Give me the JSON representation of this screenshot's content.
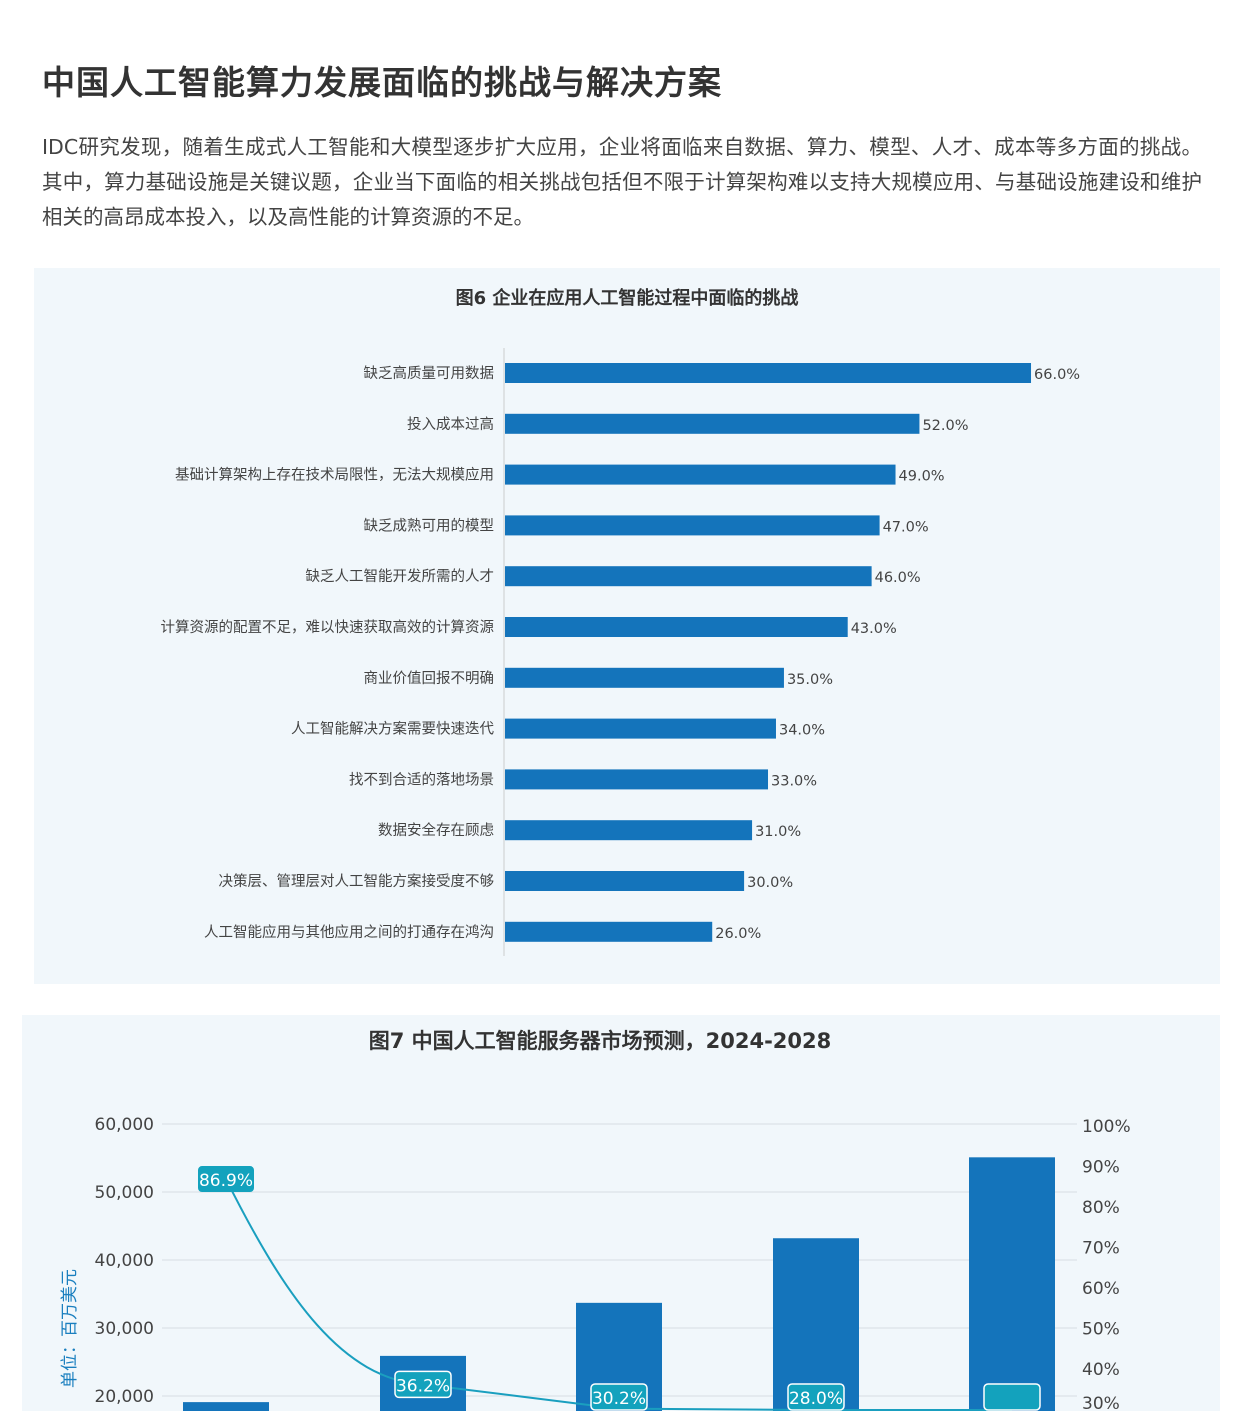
{
  "header": {
    "title": "中国人工智能算力发展面临的挑战与解决方案",
    "paragraph": "IDC研究发现，随着生成式人工智能和大模型逐步扩大应用，企业将面临来自数据、算力、模型、人才、成本等多方面的挑战。其中，算力基础设施是关键议题，企业当下面临的相关挑战包括但不限于计算架构难以支持大规模应用、与基础设施建设和维护相关的高昂成本投入，以及高性能的计算资源的不足。"
  },
  "colors": {
    "bar": "#1474bb",
    "line": "#1a9fbf",
    "label_bg": "#13a2bd",
    "card_bg": "#f1f7fb"
  },
  "chart_data": [
    {
      "type": "bar",
      "orientation": "horizontal",
      "title": "图6 企业在应用人工智能过程中面临的挑战",
      "categories": [
        "缺乏高质量可用数据",
        "投入成本过高",
        "基础计算架构上存在技术局限性，无法大规模应用",
        "缺乏成熟可用的模型",
        "缺乏人工智能开发所需的人才",
        "计算资源的配置不足，难以快速获取高效的计算资源",
        "商业价值回报不明确",
        "人工智能解决方案需要快速迭代",
        "找不到合适的落地场景",
        "数据安全存在顾虑",
        "决策层、管理层对人工智能方案接受度不够",
        "人工智能应用与其他应用之间的打通存在鸿沟"
      ],
      "values": [
        66.0,
        52.0,
        49.0,
        47.0,
        46.0,
        43.0,
        35.0,
        34.0,
        33.0,
        31.0,
        30.0,
        26.0
      ],
      "data_labels": [
        "66.0%",
        "52.0%",
        "49.0%",
        "47.0%",
        "46.0%",
        "43.0%",
        "35.0%",
        "34.0%",
        "33.0%",
        "31.0%",
        "30.0%",
        "26.0%"
      ]
    },
    {
      "type": "bar+line",
      "title": "图7 中国人工智能服务器市场预测，2024-2028",
      "ylabel": "单位：百万美元",
      "ylim": [
        0,
        60000
      ],
      "y_ticks": [
        "20,000",
        "30,000",
        "40,000",
        "50,000",
        "60,000"
      ],
      "y_tick_values": [
        20000,
        30000,
        40000,
        50000,
        60000
      ],
      "y2lim": [
        0,
        100
      ],
      "y2_ticks": [
        "30%",
        "40%",
        "50%",
        "60%",
        "70%",
        "80%",
        "90%",
        "100%"
      ],
      "y2_tick_values": [
        30,
        40,
        50,
        60,
        70,
        80,
        90,
        100
      ],
      "grid": true,
      "series": [
        {
          "type": "bar",
          "values": [
            19100,
            25900,
            33700,
            43200,
            55100
          ]
        },
        {
          "type": "line",
          "axis": "right",
          "values": [
            86.9,
            36.2,
            30.2,
            28.0,
            27.5
          ],
          "data_labels": [
            "86.9%",
            "36.2%",
            "30.2%",
            "28.0%",
            ""
          ]
        }
      ]
    }
  ]
}
